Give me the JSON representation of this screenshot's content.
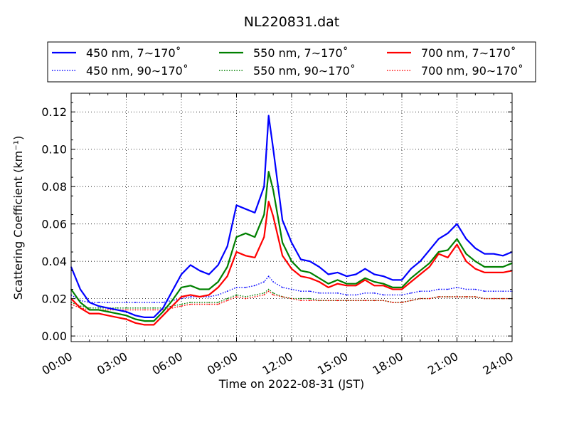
{
  "chart_data": {
    "type": "line",
    "title": "NL220831.dat",
    "xlabel": "Time on 2022-08-31 (JST)",
    "ylabel": "Scattering Coefficient (km⁻¹)",
    "xlim": [
      0,
      24
    ],
    "ylim": [
      -0.003,
      0.13
    ],
    "x_ticks": [
      "00:00",
      "03:00",
      "06:00",
      "09:00",
      "12:00",
      "15:00",
      "18:00",
      "21:00",
      "24:00"
    ],
    "y_ticks": [
      "0.00",
      "0.02",
      "0.04",
      "0.06",
      "0.08",
      "0.10",
      "0.12"
    ],
    "grid": true,
    "legend_position": "top",
    "legend_columns": 3,
    "x": [
      0,
      0.5,
      1,
      1.5,
      2,
      2.5,
      3,
      3.5,
      4,
      4.5,
      5,
      5.5,
      6,
      6.5,
      7,
      7.5,
      8,
      8.5,
      9,
      9.5,
      10,
      10.5,
      10.75,
      11,
      11.5,
      12,
      12.5,
      13,
      13.5,
      14,
      14.5,
      15,
      15.5,
      16,
      16.5,
      17,
      17.5,
      18,
      18.5,
      19,
      19.5,
      20,
      20.5,
      21,
      21.5,
      22,
      22.5,
      23,
      23.5,
      24
    ],
    "series": [
      {
        "name": "450 nm, 7∼170˚",
        "color": "#0000ff",
        "style": "solid",
        "values": [
          0.037,
          0.025,
          0.018,
          0.016,
          0.015,
          0.014,
          0.013,
          0.011,
          0.01,
          0.01,
          0.015,
          0.024,
          0.033,
          0.038,
          0.035,
          0.033,
          0.038,
          0.048,
          0.07,
          0.068,
          0.066,
          0.08,
          0.118,
          0.1,
          0.062,
          0.05,
          0.041,
          0.04,
          0.037,
          0.033,
          0.034,
          0.032,
          0.033,
          0.036,
          0.033,
          0.032,
          0.03,
          0.03,
          0.036,
          0.04,
          0.046,
          0.052,
          0.055,
          0.06,
          0.052,
          0.047,
          0.044,
          0.044,
          0.043,
          0.045
        ]
      },
      {
        "name": "450 nm, 90∼170˚",
        "color": "#0000ff",
        "style": "dotted",
        "values": [
          0.022,
          0.019,
          0.018,
          0.018,
          0.018,
          0.018,
          0.018,
          0.018,
          0.018,
          0.018,
          0.018,
          0.019,
          0.02,
          0.021,
          0.021,
          0.021,
          0.022,
          0.024,
          0.026,
          0.026,
          0.027,
          0.029,
          0.032,
          0.029,
          0.026,
          0.025,
          0.024,
          0.024,
          0.023,
          0.023,
          0.023,
          0.022,
          0.022,
          0.023,
          0.023,
          0.022,
          0.022,
          0.022,
          0.023,
          0.024,
          0.024,
          0.025,
          0.025,
          0.026,
          0.025,
          0.025,
          0.024,
          0.024,
          0.024,
          0.024
        ]
      },
      {
        "name": "550 nm, 7∼170˚",
        "color": "#008000",
        "style": "solid",
        "values": [
          0.025,
          0.018,
          0.014,
          0.014,
          0.013,
          0.012,
          0.011,
          0.009,
          0.008,
          0.008,
          0.013,
          0.019,
          0.026,
          0.027,
          0.025,
          0.025,
          0.029,
          0.037,
          0.053,
          0.055,
          0.053,
          0.065,
          0.088,
          0.078,
          0.05,
          0.04,
          0.035,
          0.034,
          0.031,
          0.028,
          0.03,
          0.028,
          0.028,
          0.031,
          0.029,
          0.028,
          0.026,
          0.026,
          0.031,
          0.035,
          0.039,
          0.045,
          0.046,
          0.052,
          0.044,
          0.04,
          0.037,
          0.037,
          0.037,
          0.039
        ]
      },
      {
        "name": "550 nm, 90∼170˚",
        "color": "#008000",
        "style": "dotted",
        "values": [
          0.018,
          0.016,
          0.015,
          0.015,
          0.015,
          0.015,
          0.015,
          0.015,
          0.015,
          0.015,
          0.015,
          0.016,
          0.017,
          0.018,
          0.018,
          0.018,
          0.018,
          0.02,
          0.022,
          0.021,
          0.022,
          0.023,
          0.025,
          0.023,
          0.021,
          0.02,
          0.02,
          0.02,
          0.019,
          0.019,
          0.019,
          0.019,
          0.019,
          0.019,
          0.019,
          0.019,
          0.018,
          0.018,
          0.019,
          0.02,
          0.02,
          0.021,
          0.021,
          0.021,
          0.021,
          0.021,
          0.02,
          0.02,
          0.02,
          0.02
        ]
      },
      {
        "name": "700 nm, 7∼170˚",
        "color": "#ff0000",
        "style": "solid",
        "values": [
          0.02,
          0.015,
          0.012,
          0.012,
          0.011,
          0.01,
          0.009,
          0.007,
          0.006,
          0.006,
          0.011,
          0.016,
          0.021,
          0.022,
          0.021,
          0.022,
          0.026,
          0.032,
          0.045,
          0.043,
          0.042,
          0.053,
          0.072,
          0.064,
          0.043,
          0.036,
          0.032,
          0.031,
          0.029,
          0.026,
          0.028,
          0.027,
          0.027,
          0.03,
          0.027,
          0.027,
          0.025,
          0.025,
          0.029,
          0.033,
          0.037,
          0.044,
          0.042,
          0.049,
          0.04,
          0.036,
          0.034,
          0.034,
          0.034,
          0.035
        ]
      },
      {
        "name": "700 nm, 90∼170˚",
        "color": "#ff0000",
        "style": "dotted",
        "values": [
          0.017,
          0.015,
          0.014,
          0.014,
          0.014,
          0.014,
          0.014,
          0.014,
          0.014,
          0.014,
          0.014,
          0.015,
          0.016,
          0.017,
          0.017,
          0.017,
          0.017,
          0.019,
          0.021,
          0.02,
          0.021,
          0.022,
          0.024,
          0.022,
          0.021,
          0.02,
          0.019,
          0.019,
          0.019,
          0.019,
          0.019,
          0.019,
          0.019,
          0.019,
          0.019,
          0.019,
          0.018,
          0.018,
          0.019,
          0.02,
          0.02,
          0.021,
          0.021,
          0.021,
          0.021,
          0.021,
          0.02,
          0.02,
          0.02,
          0.02
        ]
      }
    ]
  }
}
